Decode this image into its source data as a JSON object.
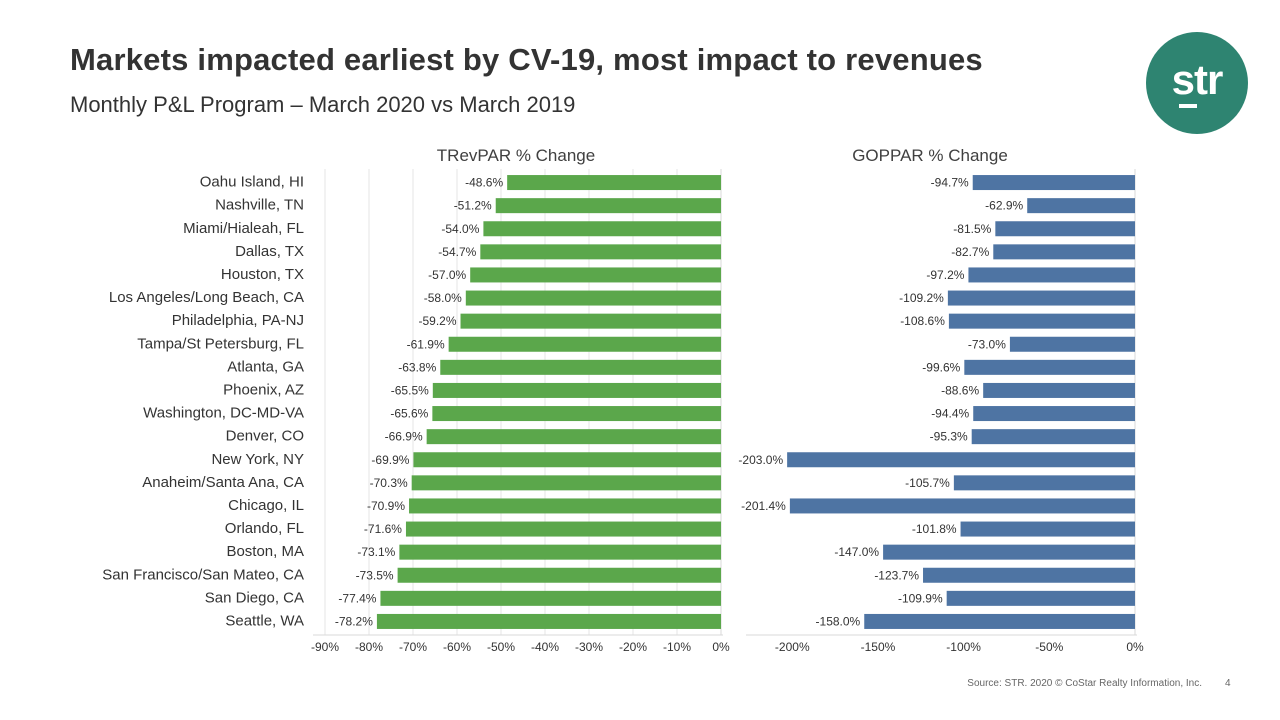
{
  "header": {
    "title": "Markets impacted earliest by CV-19, most impact to revenues",
    "subtitle": "Monthly P&L Program – March 2020 vs March 2019"
  },
  "logo": {
    "text": "str",
    "color": "#2E8471",
    "icon": "str-logo-icon"
  },
  "footer": {
    "source": "Source: STR. 2020 © CoStar Realty Information, Inc.",
    "page": "4"
  },
  "chart_data": [
    {
      "type": "bar",
      "orientation": "horizontal",
      "title": "TRevPAR % Change",
      "color": "#5BA74B",
      "xlim": [
        -90,
        0
      ],
      "ticks": [
        "-90%",
        "-80%",
        "-70%",
        "-60%",
        "-50%",
        "-40%",
        "-30%",
        "-20%",
        "-10%",
        "0%"
      ],
      "tick_values": [
        -90,
        -80,
        -70,
        -60,
        -50,
        -40,
        -30,
        -20,
        -10,
        0
      ],
      "categories": [
        "Oahu Island, HI",
        "Nashville, TN",
        "Miami/Hialeah, FL",
        "Dallas, TX",
        "Houston, TX",
        "Los Angeles/Long Beach, CA",
        "Philadelphia, PA-NJ",
        "Tampa/St Petersburg, FL",
        "Atlanta, GA",
        "Phoenix, AZ",
        "Washington, DC-MD-VA",
        "Denver, CO",
        "New York, NY",
        "Anaheim/Santa Ana, CA",
        "Chicago, IL",
        "Orlando, FL",
        "Boston, MA",
        "San Francisco/San Mateo, CA",
        "San Diego, CA",
        "Seattle, WA"
      ],
      "values": [
        -48.6,
        -51.2,
        -54.0,
        -54.7,
        -57.0,
        -58.0,
        -59.2,
        -61.9,
        -63.8,
        -65.5,
        -65.6,
        -66.9,
        -69.9,
        -70.3,
        -70.9,
        -71.6,
        -73.1,
        -73.5,
        -77.4,
        -78.2
      ],
      "labels": [
        "-48.6%",
        "-51.2%",
        "-54.0%",
        "-54.7%",
        "-57.0%",
        "-58.0%",
        "-59.2%",
        "-61.9%",
        "-63.8%",
        "-65.5%",
        "-65.6%",
        "-66.9%",
        "-69.9%",
        "-70.3%",
        "-70.9%",
        "-71.6%",
        "-73.1%",
        "-73.5%",
        "-77.4%",
        "-78.2%"
      ],
      "grid": true
    },
    {
      "type": "bar",
      "orientation": "horizontal",
      "title": "GOPPAR % Change",
      "color": "#4E74A3",
      "xlim": [
        -220,
        0
      ],
      "ticks": [
        "-200%",
        "-150%",
        "-100%",
        "-50%",
        "0%"
      ],
      "tick_values": [
        -200,
        -150,
        -100,
        -50,
        0
      ],
      "categories": [
        "Oahu Island, HI",
        "Nashville, TN",
        "Miami/Hialeah, FL",
        "Dallas, TX",
        "Houston, TX",
        "Los Angeles/Long Beach, CA",
        "Philadelphia, PA-NJ",
        "Tampa/St Petersburg, FL",
        "Atlanta, GA",
        "Phoenix, AZ",
        "Washington, DC-MD-VA",
        "Denver, CO",
        "New York, NY",
        "Anaheim/Santa Ana, CA",
        "Chicago, IL",
        "Orlando, FL",
        "Boston, MA",
        "San Francisco/San Mateo, CA",
        "San Diego, CA",
        "Seattle, WA"
      ],
      "values": [
        -94.7,
        -62.9,
        -81.5,
        -82.7,
        -97.2,
        -109.2,
        -108.6,
        -73.0,
        -99.6,
        -88.6,
        -94.4,
        -95.3,
        -203.0,
        -105.7,
        -201.4,
        -101.8,
        -147.0,
        -123.7,
        -109.9,
        -158.0
      ],
      "labels": [
        "-94.7%",
        "-62.9%",
        "-81.5%",
        "-82.7%",
        "-97.2%",
        "-109.2%",
        "-108.6%",
        "-73.0%",
        "-99.6%",
        "-88.6%",
        "-94.4%",
        "-95.3%",
        "-203.0%",
        "-105.7%",
        "-201.4%",
        "-101.8%",
        "-147.0%",
        "-123.7%",
        "-109.9%",
        "-158.0%"
      ],
      "grid": false
    }
  ]
}
